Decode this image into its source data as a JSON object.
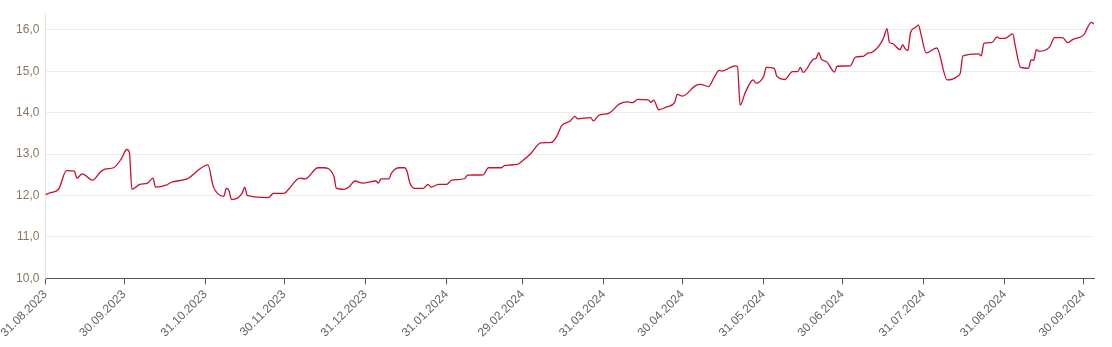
{
  "chart_data": {
    "type": "line",
    "x": [
      "2023-08-31",
      "2023-09-02",
      "2023-09-05",
      "2023-09-08",
      "2023-09-11",
      "2023-09-12",
      "2023-09-14",
      "2023-09-18",
      "2023-09-21",
      "2023-09-23",
      "2023-09-26",
      "2023-09-29",
      "2023-10-01",
      "2023-10-02",
      "2023-10-03",
      "2023-10-06",
      "2023-10-09",
      "2023-10-11",
      "2023-10-12",
      "2023-10-16",
      "2023-10-18",
      "2023-10-24",
      "2023-11-01",
      "2023-11-03",
      "2023-11-07",
      "2023-11-08",
      "2023-11-09",
      "2023-11-10",
      "2023-11-14",
      "2023-11-15",
      "2023-11-16",
      "2023-11-24",
      "2023-11-26",
      "2023-11-30",
      "2023-12-02",
      "2023-12-06",
      "2023-12-08",
      "2023-12-13",
      "2023-12-15",
      "2023-12-19",
      "2023-12-20",
      "2023-12-23",
      "2023-12-25",
      "2023-12-27",
      "2023-12-30",
      "2024-01-04",
      "2024-01-05",
      "2024-01-06",
      "2024-01-09",
      "2024-01-10",
      "2024-01-13",
      "2024-01-15",
      "2024-01-16",
      "2024-01-17",
      "2024-01-19",
      "2024-01-22",
      "2024-01-24",
      "2024-01-25",
      "2024-01-28",
      "2024-01-31",
      "2024-02-02",
      "2024-02-07",
      "2024-02-08",
      "2024-02-14",
      "2024-02-16",
      "2024-02-21",
      "2024-02-22",
      "2024-02-27",
      "2024-02-29",
      "2024-03-03",
      "2024-03-07",
      "2024-03-11",
      "2024-03-13",
      "2024-03-15",
      "2024-03-18",
      "2024-03-20",
      "2024-03-21",
      "2024-03-26",
      "2024-03-27",
      "2024-03-29",
      "2024-04-02",
      "2024-04-06",
      "2024-04-09",
      "2024-04-11",
      "2024-04-13",
      "2024-04-17",
      "2024-04-18",
      "2024-04-19",
      "2024-04-21",
      "2024-04-24",
      "2024-04-27",
      "2024-04-28",
      "2024-04-30",
      "2024-05-05",
      "2024-05-07",
      "2024-05-10",
      "2024-05-12",
      "2024-05-14",
      "2024-05-15",
      "2024-05-20",
      "2024-05-21",
      "2024-05-22",
      "2024-05-24",
      "2024-05-27",
      "2024-05-28",
      "2024-05-31",
      "2024-06-01",
      "2024-06-04",
      "2024-06-05",
      "2024-06-08",
      "2024-06-11",
      "2024-06-13",
      "2024-06-14",
      "2024-06-15",
      "2024-06-19",
      "2024-06-20",
      "2024-06-21",
      "2024-06-22",
      "2024-06-24",
      "2024-06-27",
      "2024-06-28",
      "2024-07-03",
      "2024-07-05",
      "2024-07-08",
      "2024-07-10",
      "2024-07-11",
      "2024-07-15",
      "2024-07-16",
      "2024-07-17",
      "2024-07-18",
      "2024-07-19",
      "2024-07-22",
      "2024-07-23",
      "2024-07-24",
      "2024-07-25",
      "2024-07-26",
      "2024-07-28",
      "2024-07-29",
      "2024-07-30",
      "2024-08-01",
      "2024-08-05",
      "2024-08-09",
      "2024-08-13",
      "2024-08-14",
      "2024-08-15",
      "2024-08-21",
      "2024-08-22",
      "2024-08-23",
      "2024-08-26",
      "2024-08-28",
      "2024-08-29",
      "2024-08-31",
      "2024-09-03",
      "2024-09-04",
      "2024-09-06",
      "2024-09-09",
      "2024-09-10",
      "2024-09-11",
      "2024-09-12",
      "2024-09-13",
      "2024-09-17",
      "2024-09-19",
      "2024-09-22",
      "2024-09-24",
      "2024-09-26",
      "2024-09-30",
      "2024-10-03",
      "2024-10-04"
    ],
    "series": [
      {
        "color": "#c8102e",
        "values": [
          12.02,
          12.07,
          12.15,
          12.6,
          12.59,
          12.42,
          12.52,
          12.37,
          12.57,
          12.64,
          12.67,
          12.89,
          13.11,
          13.04,
          12.15,
          12.27,
          12.3,
          12.42,
          12.2,
          12.25,
          12.32,
          12.4,
          12.74,
          12.22,
          11.98,
          12.17,
          12.12,
          11.9,
          12.05,
          12.2,
          12.0,
          11.95,
          12.05,
          12.05,
          12.17,
          12.42,
          12.4,
          12.67,
          12.67,
          12.47,
          12.17,
          12.15,
          12.22,
          12.35,
          12.3,
          12.35,
          12.3,
          12.4,
          12.4,
          12.54,
          12.67,
          12.67,
          12.57,
          12.3,
          12.17,
          12.17,
          12.27,
          12.2,
          12.27,
          12.27,
          12.37,
          12.41,
          12.49,
          12.5,
          12.67,
          12.67,
          12.72,
          12.75,
          12.84,
          13.0,
          13.27,
          13.28,
          13.42,
          13.69,
          13.79,
          13.91,
          13.85,
          13.88,
          13.8,
          13.93,
          13.99,
          14.21,
          14.26,
          14.24,
          14.32,
          14.31,
          14.25,
          14.3,
          14.07,
          14.14,
          14.24,
          14.44,
          14.4,
          14.65,
          14.68,
          14.63,
          14.84,
          15.02,
          15.0,
          15.13,
          15.11,
          14.18,
          14.49,
          14.79,
          14.71,
          14.88,
          15.09,
          15.07,
          14.88,
          14.8,
          14.99,
          14.99,
          15.09,
          14.97,
          15.29,
          15.31,
          15.45,
          15.29,
          15.23,
          14.98,
          15.12,
          15.13,
          15.34,
          15.36,
          15.44,
          15.45,
          15.71,
          15.85,
          16.03,
          15.69,
          15.67,
          15.52,
          15.64,
          15.54,
          15.5,
          15.93,
          16.06,
          16.12,
          15.89,
          15.44,
          15.56,
          14.79,
          14.88,
          14.96,
          15.37,
          15.42,
          15.37,
          15.67,
          15.69,
          15.83,
          15.79,
          15.79,
          15.9,
          15.6,
          15.09,
          15.07,
          15.27,
          15.26,
          15.52,
          15.48,
          15.58,
          15.81,
          15.81,
          15.69,
          15.77,
          15.87,
          16.18,
          16.14
        ]
      }
    ],
    "xlim": [
      "2023-08-31",
      "2024-10-04"
    ],
    "xticks": [
      {
        "value": "2023-08-31",
        "label": "31.08.2023"
      },
      {
        "value": "2023-09-30",
        "label": "30.09.2023"
      },
      {
        "value": "2023-10-31",
        "label": "31.10.2023"
      },
      {
        "value": "2023-11-30",
        "label": "30.11.2023"
      },
      {
        "value": "2023-12-31",
        "label": "31.12.2023"
      },
      {
        "value": "2024-01-31",
        "label": "31.01.2024"
      },
      {
        "value": "2024-02-29",
        "label": "29.02.2024"
      },
      {
        "value": "2024-03-31",
        "label": "31.03.2024"
      },
      {
        "value": "2024-04-30",
        "label": "30.04.2024"
      },
      {
        "value": "2024-05-31",
        "label": "31.05.2024"
      },
      {
        "value": "2024-06-30",
        "label": "30.06.2024"
      },
      {
        "value": "2024-07-31",
        "label": "31.07.2024"
      },
      {
        "value": "2024-08-31",
        "label": "31.08.2024"
      },
      {
        "value": "2024-09-30",
        "label": "30.09.2024"
      }
    ],
    "ylim": [
      10,
      16.4
    ],
    "yticks": [
      {
        "value": 10,
        "label": "10,0"
      },
      {
        "value": 11,
        "label": "11,0"
      },
      {
        "value": 12,
        "label": "12,0"
      },
      {
        "value": 13,
        "label": "13,0"
      },
      {
        "value": 14,
        "label": "14,0"
      },
      {
        "value": 15,
        "label": "15,0"
      },
      {
        "value": 16,
        "label": "16,0"
      }
    ],
    "grid": "y",
    "legend": false,
    "marker": "none",
    "line_style": "solid"
  }
}
